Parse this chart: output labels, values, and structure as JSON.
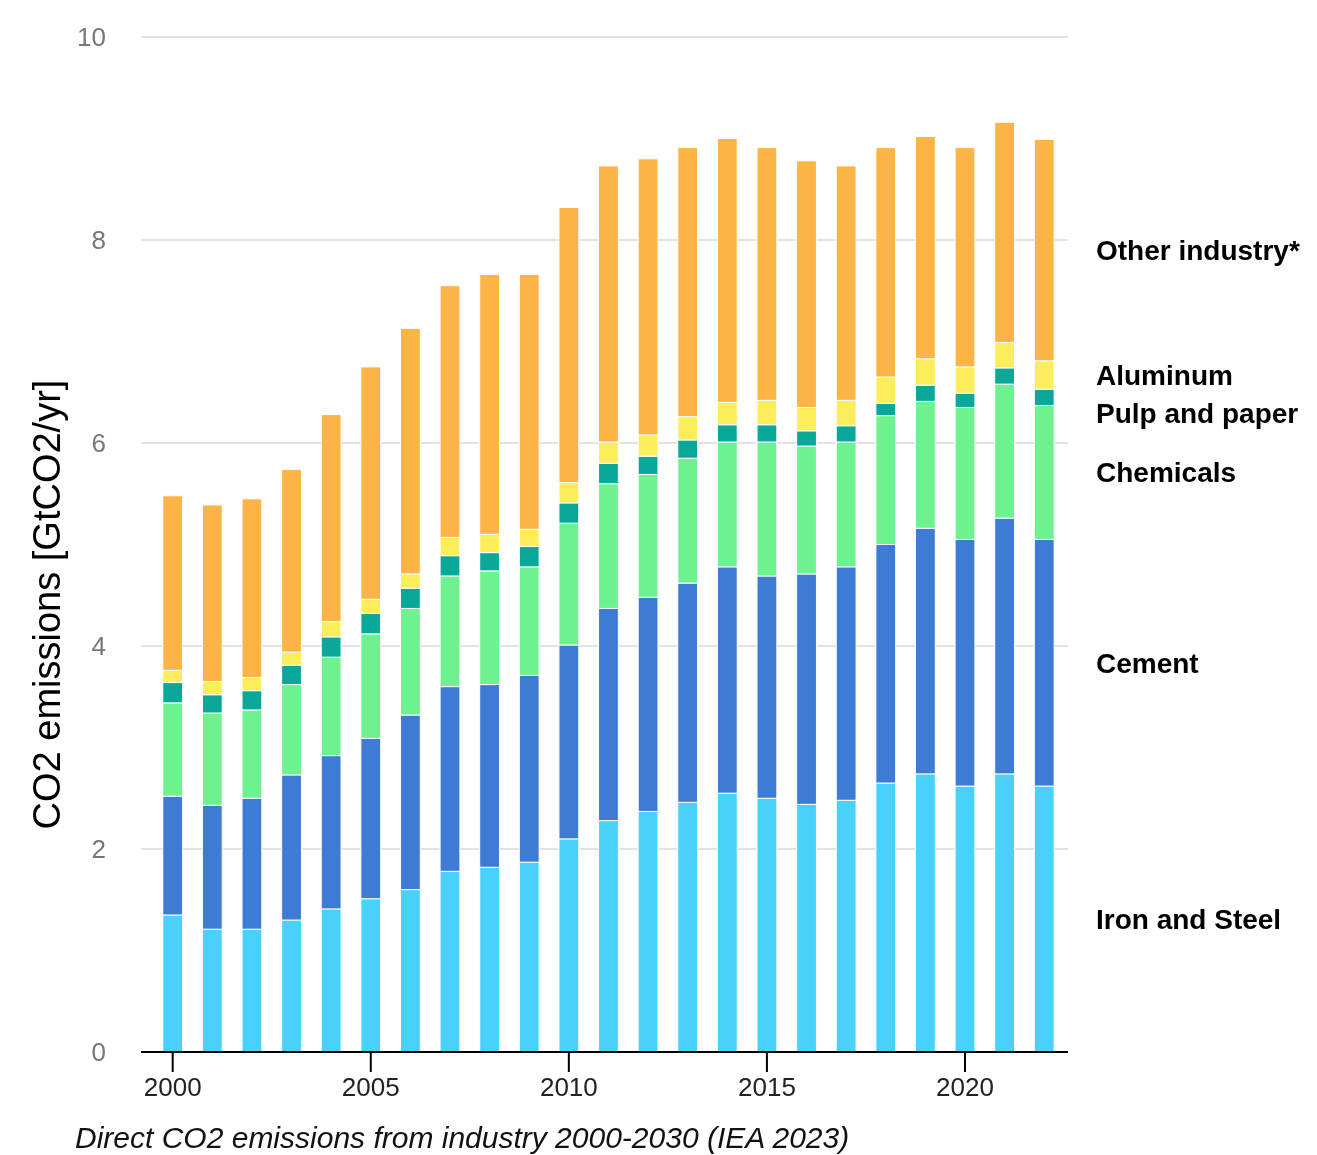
{
  "chart_data": {
    "type": "bar",
    "stacked": true,
    "ylabel": "CO2 emissions [GtCO2/yr]",
    "annotations": [
      "Direct CO2 emissions from industry 2000-2030 (IEA 2023)"
    ],
    "x": [
      2000,
      2001,
      2002,
      2003,
      2004,
      2005,
      2006,
      2007,
      2008,
      2009,
      2010,
      2011,
      2012,
      2013,
      2014,
      2015,
      2016,
      2017,
      2018,
      2019,
      2020,
      2021,
      2022
    ],
    "xlim": [
      1999.2,
      2022.6
    ],
    "xticks": [
      2000,
      2005,
      2010,
      2015,
      2020
    ],
    "ylim": [
      0,
      10
    ],
    "yticks": [
      0,
      2,
      4,
      6,
      8,
      10
    ],
    "grid": "y",
    "legend": "right",
    "series": [
      {
        "name": "Iron and Steel",
        "color": "#48d1fb",
        "values": [
          1.35,
          1.21,
          1.21,
          1.3,
          1.41,
          1.51,
          1.6,
          1.78,
          1.82,
          1.87,
          2.1,
          2.28,
          2.37,
          2.46,
          2.55,
          2.5,
          2.44,
          2.48,
          2.65,
          2.74,
          2.62,
          2.74,
          2.62
        ]
      },
      {
        "name": "Cement",
        "color": "#3e7bd4",
        "values": [
          1.17,
          1.22,
          1.29,
          1.43,
          1.51,
          1.58,
          1.72,
          1.82,
          1.8,
          1.84,
          1.91,
          2.09,
          2.11,
          2.16,
          2.23,
          2.19,
          2.27,
          2.3,
          2.35,
          2.42,
          2.43,
          2.52,
          2.43
        ]
      },
      {
        "name": "Chemicals",
        "color": "#6ef28f",
        "values": [
          0.92,
          0.91,
          0.87,
          0.89,
          0.97,
          1.03,
          1.05,
          1.09,
          1.12,
          1.07,
          1.2,
          1.23,
          1.21,
          1.23,
          1.23,
          1.32,
          1.26,
          1.23,
          1.27,
          1.25,
          1.3,
          1.32,
          1.32
        ]
      },
      {
        "name": "Pulp and paper",
        "color": "#0aa899",
        "values": [
          0.2,
          0.18,
          0.19,
          0.19,
          0.2,
          0.2,
          0.2,
          0.2,
          0.18,
          0.2,
          0.2,
          0.2,
          0.18,
          0.18,
          0.17,
          0.17,
          0.15,
          0.16,
          0.12,
          0.16,
          0.14,
          0.16,
          0.16
        ]
      },
      {
        "name": "Aluminum",
        "color": "#fbee5a",
        "values": [
          0.12,
          0.13,
          0.13,
          0.13,
          0.15,
          0.14,
          0.14,
          0.18,
          0.18,
          0.17,
          0.2,
          0.21,
          0.21,
          0.23,
          0.22,
          0.24,
          0.23,
          0.25,
          0.26,
          0.26,
          0.26,
          0.25,
          0.28
        ]
      },
      {
        "name": "Other industry*",
        "color": "#fdb446",
        "values": [
          1.72,
          1.74,
          1.76,
          1.8,
          2.04,
          2.29,
          2.42,
          2.48,
          2.56,
          2.51,
          2.71,
          2.72,
          2.72,
          2.65,
          2.6,
          2.49,
          2.43,
          2.31,
          2.26,
          2.19,
          2.16,
          2.17,
          2.18
        ]
      }
    ]
  }
}
